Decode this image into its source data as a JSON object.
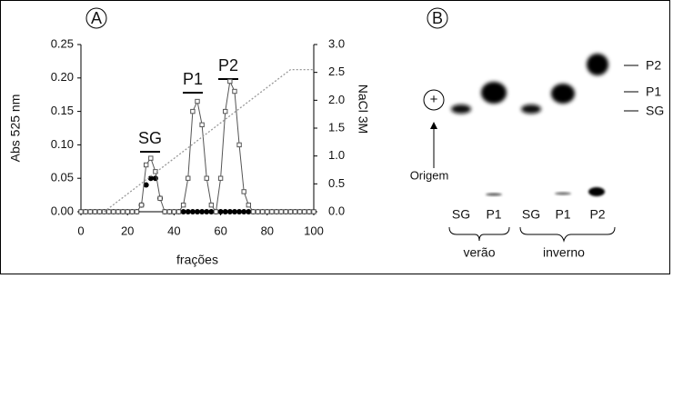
{
  "chart_data": {
    "type": "line",
    "panel_label": "A",
    "xlabel": "frações",
    "ylabel": "Abs 525 nm",
    "y2label": "NaCl 3M",
    "annotations": [
      "SG",
      "P1",
      "P2"
    ],
    "xlim": [
      0,
      100
    ],
    "xticks": [
      0,
      20,
      40,
      60,
      80,
      100
    ],
    "ylim": [
      0,
      0.25
    ],
    "yticks": [
      {
        "value": 0,
        "label": "0.00"
      },
      0.05,
      {
        "value": 0.1,
        "label": "0.10"
      },
      0.15,
      {
        "value": 0.2,
        "label": "0.20"
      },
      0.25
    ],
    "y2lim": [
      0,
      3
    ],
    "y2ticks": [
      {
        "value": 0,
        "label": "0.0"
      },
      0.5,
      {
        "value": 1,
        "label": "1.0"
      },
      1.5,
      {
        "value": 2,
        "label": "2.0"
      },
      2.5,
      {
        "value": 3,
        "label": "3.0"
      }
    ],
    "x": [
      0,
      2,
      4,
      6,
      8,
      10,
      12,
      14,
      16,
      18,
      20,
      22,
      24,
      26,
      28,
      30,
      32,
      34,
      36,
      38,
      40,
      42,
      44,
      46,
      48,
      50,
      52,
      54,
      56,
      58,
      60,
      62,
      64,
      66,
      68,
      70,
      72,
      74,
      76,
      78,
      80,
      82,
      84,
      86,
      88,
      90,
      92,
      94,
      96,
      98,
      100
    ],
    "series": [
      {
        "marker": "filled-circle",
        "color": "#000000",
        "values": [
          0,
          0,
          0,
          0,
          0,
          0,
          0,
          0,
          0,
          0,
          0,
          0,
          0,
          0.01,
          0.04,
          0.05,
          0.05,
          0.02,
          0,
          0,
          0,
          0,
          0,
          0,
          0,
          0,
          0,
          0,
          0,
          0,
          0,
          0,
          0,
          0,
          0,
          0,
          0,
          0,
          0,
          0,
          0,
          0,
          0,
          0,
          0,
          0,
          0,
          0,
          0,
          0,
          0
        ]
      },
      {
        "marker": "open-square",
        "color": "#555555",
        "values": [
          0,
          0,
          0,
          0,
          0,
          0,
          0,
          0,
          0,
          0,
          0,
          0,
          0,
          0.01,
          0.07,
          0.08,
          0.06,
          0.02,
          0,
          0,
          0,
          0,
          0.01,
          0.05,
          0.15,
          0.165,
          0.13,
          0.05,
          0.01,
          0,
          0.05,
          0.15,
          0.195,
          0.18,
          0.1,
          0.03,
          0.01,
          0,
          0,
          0,
          0,
          0,
          0,
          0,
          0,
          0,
          0,
          0,
          0,
          0,
          0
        ]
      },
      {
        "marker": "dotted",
        "color": "#999999",
        "axis": "y2",
        "x": [
          10,
          90,
          100
        ],
        "values": [
          0,
          2.55,
          2.55
        ]
      }
    ]
  },
  "panel_b": {
    "panel_label": "B",
    "band_labels": [
      "P2",
      "P1",
      "SG"
    ],
    "plus": "+",
    "origin": "Origem",
    "lanes": [
      "SG",
      "P1",
      "SG",
      "P1",
      "P2"
    ],
    "groups": [
      "verão",
      "inverno"
    ]
  }
}
